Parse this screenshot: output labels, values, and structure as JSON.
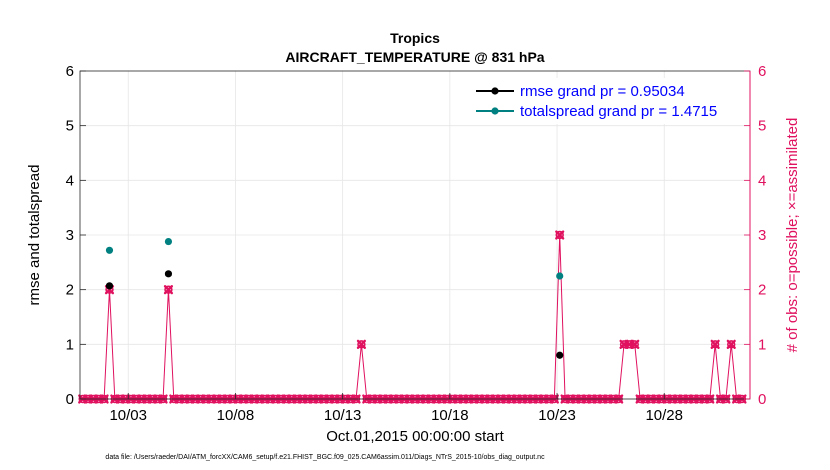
{
  "chart_data": {
    "type": "scatter",
    "title": "Tropics",
    "subtitle": "AIRCRAFT_TEMPERATURE @ 831 hPa",
    "xlabel": "Oct.01,2015 00:00:00 start",
    "ylabel_left": "rmse and totalspread",
    "ylabel_right": "# of obs: o=possible; ×=assimilated",
    "footer": "data file: /Users/raeder/DAI/ATM_forcXX/CAM6_setup/f.e21.FHIST_BGC.f09_025.CAM6assim.011/Diags_NTrS_2015-10/obs_diag_output.nc",
    "xlim": [
      0.75,
      32.0
    ],
    "ylim_left": [
      0,
      6
    ],
    "ylim_right": [
      0,
      6
    ],
    "x_ticks": [
      {
        "value": 3,
        "label": "10/03"
      },
      {
        "value": 8,
        "label": "10/08"
      },
      {
        "value": 13,
        "label": "10/13"
      },
      {
        "value": 18,
        "label": "10/18"
      },
      {
        "value": 23,
        "label": "10/23"
      },
      {
        "value": 28,
        "label": "10/28"
      }
    ],
    "y_ticks": [
      "0",
      "1",
      "2",
      "3",
      "4",
      "5",
      "6"
    ],
    "grid": true,
    "legend_position": "top-right",
    "legend": [
      {
        "label": "rmse grand pr = 0.95034",
        "color": "#000000"
      },
      {
        "label": "totalspread grand pr = 1.4715",
        "color": "#008080"
      }
    ],
    "series": [
      {
        "name": "rmse",
        "color": "#000000",
        "points": [
          {
            "x": 2.125,
            "y": 2.07
          },
          {
            "x": 4.875,
            "y": 2.29
          },
          {
            "x": 23.125,
            "y": 0.8
          }
        ]
      },
      {
        "name": "totalspread",
        "color": "#008080",
        "points": [
          {
            "x": 2.125,
            "y": 2.72
          },
          {
            "x": 4.875,
            "y": 2.88
          },
          {
            "x": 23.125,
            "y": 2.25
          }
        ]
      },
      {
        "name": "obs_possible",
        "color": "#e0115f",
        "marker": "o",
        "nonzero": [
          {
            "x": 2.125,
            "y": 2
          },
          {
            "x": 4.875,
            "y": 2
          },
          {
            "x": 13.875,
            "y": 1
          },
          {
            "x": 23.125,
            "y": 3
          },
          {
            "x": 26.125,
            "y": 1
          },
          {
            "x": 26.375,
            "y": 1
          },
          {
            "x": 26.625,
            "y": 1
          },
          {
            "x": 30.375,
            "y": 1
          },
          {
            "x": 31.125,
            "y": 1
          }
        ],
        "x_start": 0.875,
        "x_step": 0.25,
        "count": 124,
        "baseline": 0
      },
      {
        "name": "obs_assimilated",
        "color": "#e0115f",
        "marker": "x",
        "nonzero": [
          {
            "x": 2.125,
            "y": 2
          },
          {
            "x": 4.875,
            "y": 2
          },
          {
            "x": 13.875,
            "y": 1
          },
          {
            "x": 23.125,
            "y": 3
          },
          {
            "x": 26.125,
            "y": 1
          },
          {
            "x": 26.375,
            "y": 1
          },
          {
            "x": 26.625,
            "y": 1
          },
          {
            "x": 30.375,
            "y": 1
          },
          {
            "x": 31.125,
            "y": 1
          }
        ],
        "x_start": 0.875,
        "x_step": 0.25,
        "count": 124,
        "baseline": 0
      }
    ]
  },
  "colors": {
    "axis": "#262626",
    "grid": "#e6e6e6",
    "right_axis": "#e0115f",
    "legend_text": "#0000ff"
  }
}
